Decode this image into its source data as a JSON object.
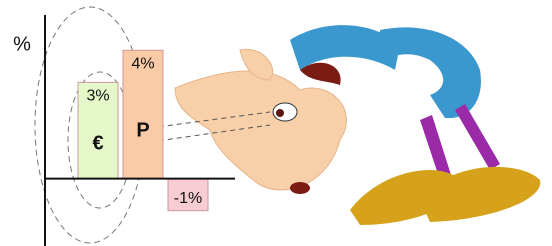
{
  "chart_data": {
    "type": "bar",
    "y_label": "%",
    "categories": [
      "€",
      "P",
      null
    ],
    "values": [
      3,
      4,
      -1
    ],
    "value_labels": [
      "3%",
      "4%",
      "-1%"
    ],
    "colors": [
      "#e6f7c9",
      "#fbcaa6",
      "#f8ccd3"
    ],
    "ylim": [
      -2.1,
      5.1
    ]
  }
}
